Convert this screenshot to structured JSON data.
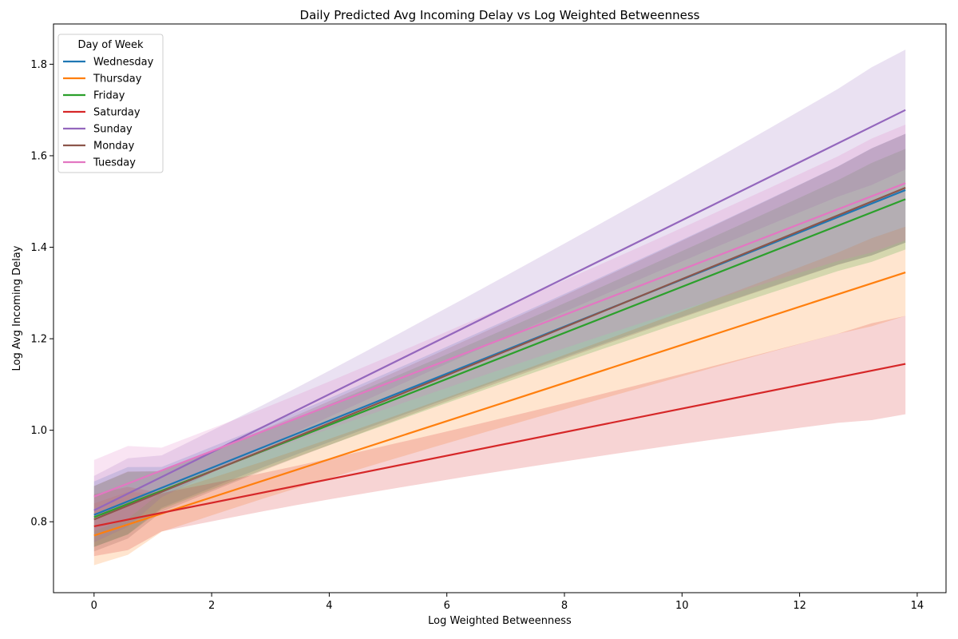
{
  "chart_data": {
    "type": "line",
    "title": "Daily Predicted Avg Incoming Delay vs Log Weighted Betweenness",
    "xlabel": "Log Weighted Betweenness",
    "ylabel": "Log Avg Incoming Delay",
    "xlim": [
      -0.69,
      14.49
    ],
    "ylim": [
      0.645,
      1.888
    ],
    "xticks": [
      0,
      2,
      4,
      6,
      8,
      10,
      12,
      14
    ],
    "yticks": [
      0.8,
      1.0,
      1.2,
      1.4,
      1.6,
      1.8
    ],
    "x_range": [
      0,
      13.8
    ],
    "legend": {
      "title": "Day of Week",
      "position": "top-left"
    },
    "series": [
      {
        "name": "Wednesday",
        "color": "#1f77b4",
        "y_start": 0.815,
        "y_end": 1.525,
        "lo_start": 0.745,
        "hi_start": 0.888,
        "lo_end": 1.41,
        "hi_end": 1.648
      },
      {
        "name": "Thursday",
        "color": "#ff7f0e",
        "y_start": 0.77,
        "y_end": 1.345,
        "lo_start": 0.705,
        "hi_start": 0.84,
        "lo_end": 1.25,
        "hi_end": 1.445
      },
      {
        "name": "Friday",
        "color": "#2ca02c",
        "y_start": 0.81,
        "y_end": 1.505,
        "lo_start": 0.745,
        "hi_start": 0.878,
        "lo_end": 1.395,
        "hi_end": 1.615
      },
      {
        "name": "Saturday",
        "color": "#d62728",
        "y_start": 0.79,
        "y_end": 1.145,
        "lo_start": 0.725,
        "hi_start": 0.86,
        "lo_end": 1.035,
        "hi_end": 1.25
      },
      {
        "name": "Sunday",
        "color": "#9467bd",
        "y_start": 0.825,
        "y_end": 1.7,
        "lo_start": 0.755,
        "hi_start": 0.9,
        "lo_end": 1.57,
        "hi_end": 1.832
      },
      {
        "name": "Monday",
        "color": "#8c564b",
        "y_start": 0.805,
        "y_end": 1.53,
        "lo_start": 0.735,
        "hi_start": 0.878,
        "lo_end": 1.41,
        "hi_end": 1.648
      },
      {
        "name": "Tuesday",
        "color": "#e377c2",
        "y_start": 0.855,
        "y_end": 1.54,
        "lo_start": 0.78,
        "hi_start": 0.935,
        "lo_end": 1.415,
        "hi_end": 1.668
      }
    ]
  }
}
